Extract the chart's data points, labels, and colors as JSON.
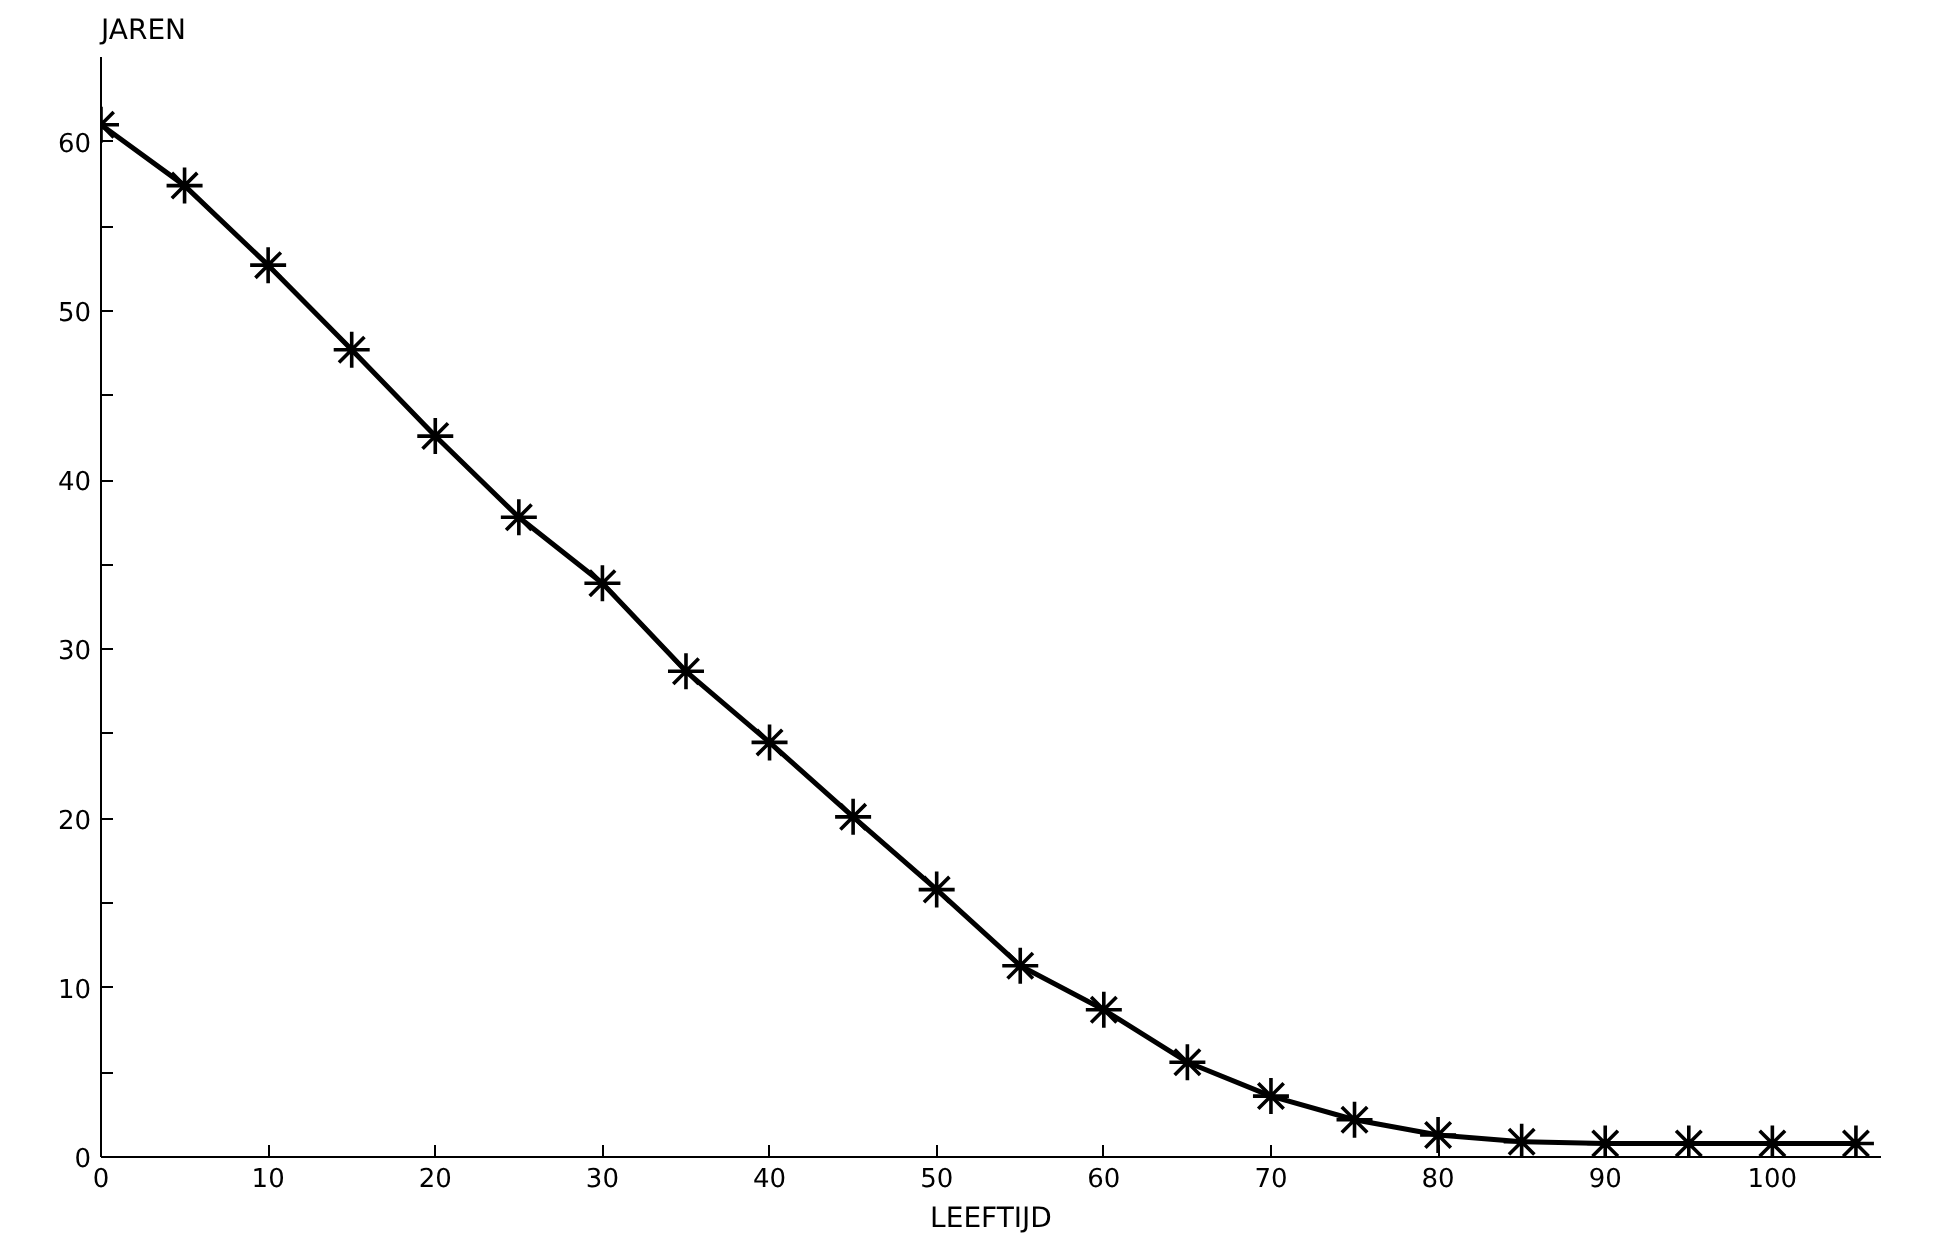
{
  "chart_data": {
    "type": "line",
    "xlabel": "LEEFTIJD",
    "ylabel": "JAREN",
    "x": [
      0,
      5,
      10,
      15,
      20,
      25,
      30,
      35,
      40,
      45,
      50,
      55,
      60,
      65,
      70,
      75,
      80,
      85,
      90,
      95,
      100,
      105
    ],
    "series": [
      {
        "color": "#000000",
        "values": [
          61.0,
          57.4,
          52.7,
          47.7,
          42.6,
          37.8,
          33.9,
          28.7,
          24.5,
          20.1,
          15.8,
          11.3,
          8.7,
          5.6,
          3.6,
          2.2,
          1.3,
          0.9,
          0.8,
          0.8,
          0.8,
          0.8
        ]
      }
    ],
    "xlim": [
      0,
      106.5
    ],
    "ylim": [
      0,
      65
    ],
    "xticks": [
      0,
      10,
      20,
      30,
      40,
      50,
      60,
      70,
      80,
      90,
      100
    ],
    "yticks": [
      0,
      {
        "value": 5,
        "label": null
      },
      10,
      {
        "value": 15,
        "label": null
      },
      20,
      {
        "value": 25,
        "label": null
      },
      30,
      {
        "value": 35,
        "label": null
      },
      40,
      {
        "value": 45,
        "label": null
      },
      50,
      {
        "value": 55,
        "label": null
      },
      60
    ],
    "grid": false,
    "marker": "cross",
    "line_style": "solid"
  }
}
